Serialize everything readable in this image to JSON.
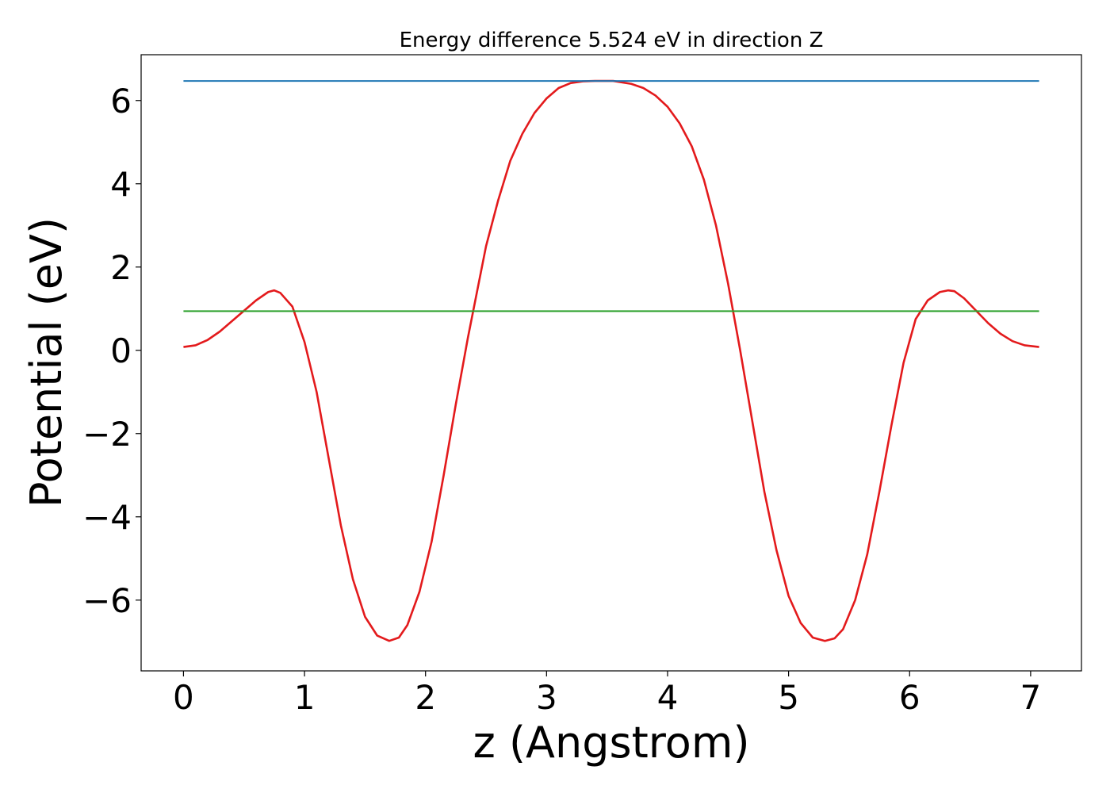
{
  "chart_data": {
    "type": "line",
    "title": "Energy difference 5.524 eV in direction Z",
    "xlabel": "z (Angstrom)",
    "ylabel": "Potential (eV)",
    "xlim": [
      -0.35,
      7.42
    ],
    "ylim": [
      -7.7,
      7.1
    ],
    "xticks": [
      0,
      1,
      2,
      3,
      4,
      5,
      6,
      7
    ],
    "xtick_labels": [
      "0",
      "1",
      "2",
      "3",
      "4",
      "5",
      "6",
      "7"
    ],
    "yticks": [
      -6,
      -4,
      -2,
      0,
      2,
      4,
      6
    ],
    "ytick_labels": [
      "−6",
      "−4",
      "−2",
      "0",
      "2",
      "4",
      "6"
    ],
    "grid": false,
    "series": [
      {
        "color": "#e31a1c",
        "x": [
          0.0,
          0.1,
          0.2,
          0.3,
          0.4,
          0.5,
          0.6,
          0.7,
          0.75,
          0.8,
          0.9,
          1.0,
          1.1,
          1.2,
          1.3,
          1.4,
          1.5,
          1.6,
          1.7,
          1.78,
          1.85,
          1.95,
          2.05,
          2.15,
          2.25,
          2.35,
          2.5,
          2.6,
          2.7,
          2.8,
          2.9,
          3.0,
          3.1,
          3.2,
          3.3,
          3.4,
          3.55,
          3.7,
          3.8,
          3.9,
          4.0,
          4.1,
          4.2,
          4.3,
          4.4,
          4.5,
          4.6,
          4.7,
          4.8,
          4.9,
          5.0,
          5.1,
          5.2,
          5.3,
          5.38,
          5.45,
          5.55,
          5.65,
          5.75,
          5.85,
          5.95,
          6.05,
          6.15,
          6.25,
          6.32,
          6.37,
          6.45,
          6.55,
          6.65,
          6.75,
          6.85,
          6.95,
          7.07
        ],
        "y": [
          0.08,
          0.12,
          0.25,
          0.45,
          0.7,
          0.95,
          1.2,
          1.4,
          1.44,
          1.38,
          1.05,
          0.2,
          -1.0,
          -2.6,
          -4.2,
          -5.5,
          -6.4,
          -6.85,
          -6.98,
          -6.9,
          -6.6,
          -5.8,
          -4.6,
          -3.0,
          -1.3,
          0.3,
          2.5,
          3.6,
          4.55,
          5.2,
          5.7,
          6.05,
          6.3,
          6.42,
          6.46,
          6.47,
          6.47,
          6.4,
          6.3,
          6.12,
          5.85,
          5.45,
          4.9,
          4.1,
          3.0,
          1.6,
          0.0,
          -1.7,
          -3.4,
          -4.8,
          -5.9,
          -6.55,
          -6.9,
          -6.98,
          -6.92,
          -6.7,
          -6.0,
          -4.9,
          -3.4,
          -1.8,
          -0.3,
          0.75,
          1.2,
          1.4,
          1.44,
          1.42,
          1.25,
          0.95,
          0.65,
          0.4,
          0.22,
          0.12,
          0.08
        ]
      },
      {
        "color": "#1f77b4",
        "x": [
          0.0,
          7.07
        ],
        "y": [
          6.47,
          6.47
        ]
      },
      {
        "color": "#2ca02c",
        "x": [
          0.0,
          7.07
        ],
        "y": [
          0.94,
          0.94
        ]
      }
    ]
  }
}
